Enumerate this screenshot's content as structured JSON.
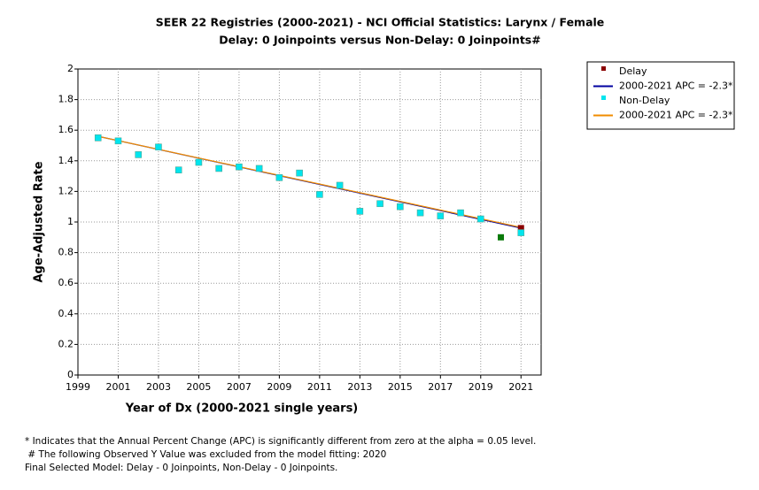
{
  "chart_data": {
    "type": "scatter",
    "title": [
      "SEER 22 Registries (2000-2021) - NCI Official Statistics: Larynx / Female",
      "Delay: 0 Joinpoints  versus  Non-Delay: 0 Joinpoints#"
    ],
    "x_label": "Year of Dx (2000-2021 single years)",
    "y_label": "Age-Adjusted Rate",
    "x": [
      2000,
      2001,
      2002,
      2003,
      2004,
      2005,
      2006,
      2007,
      2008,
      2009,
      2010,
      2011,
      2012,
      2013,
      2014,
      2015,
      2016,
      2017,
      2018,
      2019,
      2020,
      2021
    ],
    "series": [
      {
        "name": "Delay",
        "color": "#8b0000",
        "values": [
          1.55,
          1.53,
          1.44,
          1.49,
          1.34,
          1.39,
          1.35,
          1.36,
          1.35,
          1.29,
          1.32,
          1.18,
          1.24,
          1.07,
          1.12,
          1.1,
          1.06,
          1.04,
          1.06,
          1.02,
          null,
          0.96
        ]
      },
      {
        "name": "Non-Delay",
        "color": "#00e5ee",
        "values": [
          1.55,
          1.53,
          1.44,
          1.49,
          1.34,
          1.39,
          1.35,
          1.36,
          1.35,
          1.29,
          1.32,
          1.18,
          1.24,
          1.07,
          1.12,
          1.1,
          1.06,
          1.04,
          1.06,
          1.02,
          null,
          0.93
        ]
      }
    ],
    "excluded_point": {
      "x": 2020,
      "value": 0.9,
      "color": "#0a7a0a"
    },
    "fits": [
      {
        "label": "2000-2021 APC  = -2.3*",
        "color": "#0000a0",
        "x": [
          2000,
          2021
        ],
        "values": [
          1.56,
          0.96
        ]
      },
      {
        "label": "2000-2021 APC  = -2.3*",
        "color": "#f08c00",
        "x": [
          2000,
          2021
        ],
        "values": [
          1.56,
          0.965
        ]
      }
    ],
    "xlim": [
      1999,
      2022
    ],
    "xticks": [
      1999,
      2001,
      2003,
      2005,
      2007,
      2009,
      2011,
      2013,
      2015,
      2017,
      2019,
      2021
    ],
    "ylim": [
      0,
      2
    ],
    "yticks": [
      0,
      0.2,
      0.4,
      0.6,
      0.8,
      1,
      1.2,
      1.4,
      1.6,
      1.8,
      2
    ],
    "grid": true,
    "legend": "right",
    "notes": [
      "* Indicates that the Annual Percent Change (APC) is significantly different from zero at the alpha = 0.05 level.",
      " # The following Observed Y Value was excluded from the model fitting: 2020",
      "Final Selected Model: Delay - 0 Joinpoints, Non-Delay - 0 Joinpoints."
    ]
  }
}
